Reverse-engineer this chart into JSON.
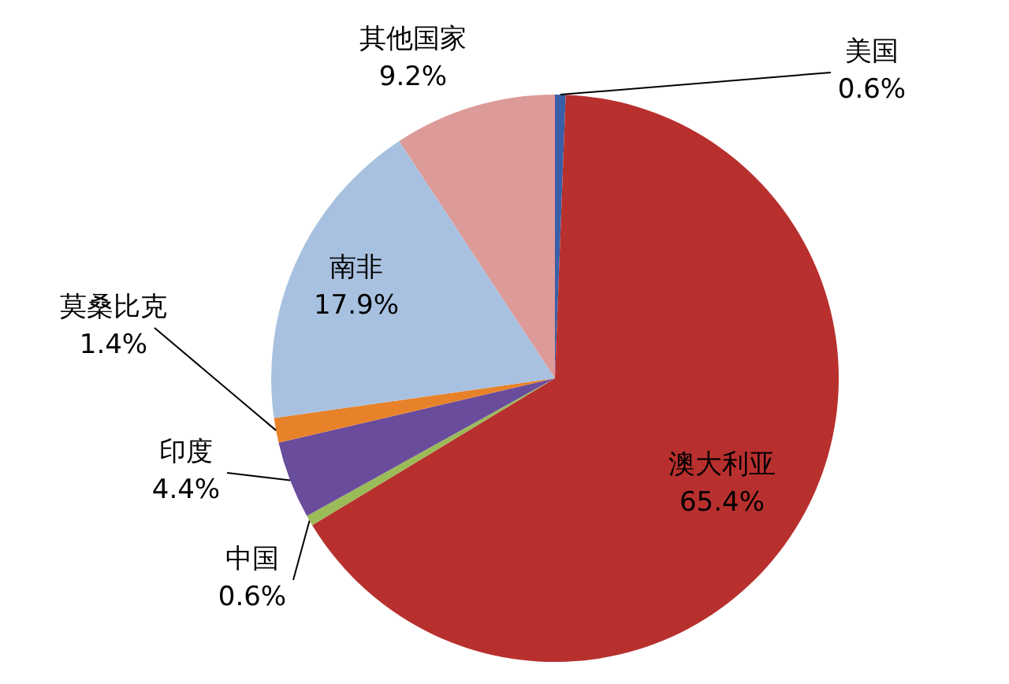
{
  "chart_data": {
    "type": "pie",
    "categories": [
      "美国",
      "澳大利亚",
      "中国",
      "印度",
      "莫桑比克",
      "南非",
      "其他国家"
    ],
    "values": [
      0.6,
      65.4,
      0.6,
      4.4,
      1.4,
      17.9,
      9.2
    ],
    "value_labels": [
      "0.6%",
      "65.4%",
      "0.6%",
      "4.4%",
      "1.4%",
      "17.9%",
      "9.2%"
    ],
    "colors": [
      "#3a5fa8",
      "#b8302e",
      "#9bbb59",
      "#6a4c9c",
      "#e8822a",
      "#a9c1e0",
      "#dc9a98"
    ]
  }
}
